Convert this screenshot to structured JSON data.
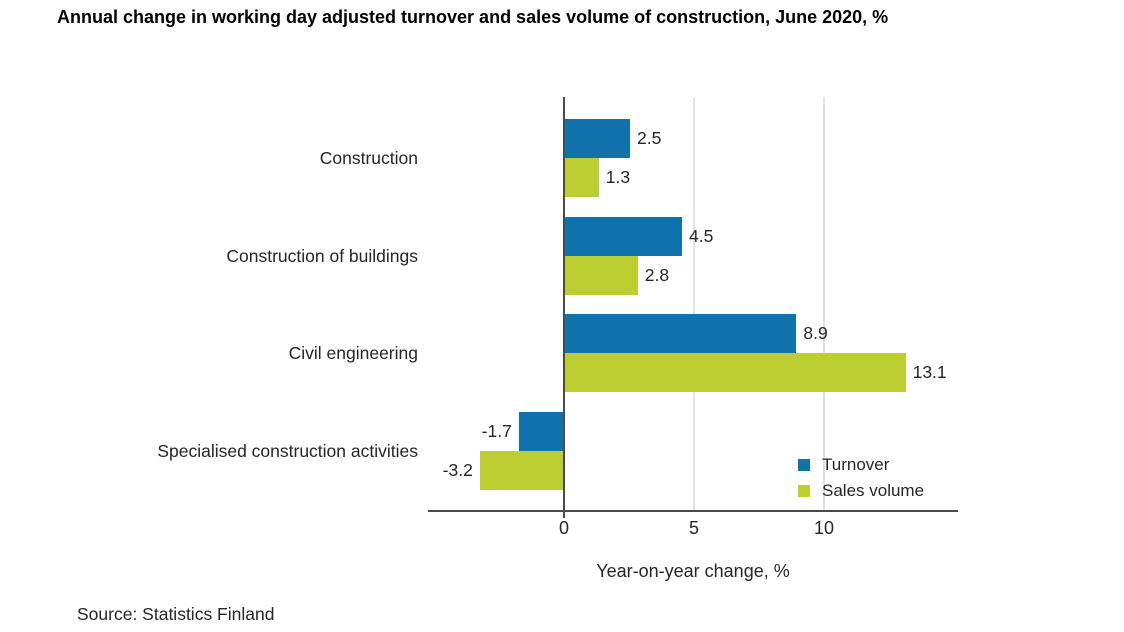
{
  "title": "Annual change in working day adjusted turnover and sales volume of construction, June 2020, %",
  "source": "Source: Statistics Finland",
  "colors": {
    "turnover_blue": "#1173ac",
    "sales_volume_green": "#bdce32",
    "axis": "#4a4a4a",
    "gridline": "#e2e2e2",
    "text": "#262626"
  },
  "chart_data": {
    "type": "bar",
    "orientation": "horizontal",
    "title": "Annual change in working day adjusted turnover and sales volume of construction, June 2020, %",
    "categories": [
      "Construction",
      "Construction of buildings",
      "Civil engineering",
      "Specialised construction activities"
    ],
    "series": [
      {
        "name": "Turnover",
        "color": "#1173ac",
        "values": [
          2.5,
          4.5,
          8.9,
          -1.7
        ]
      },
      {
        "name": "Sales volume",
        "color": "#bdce32",
        "values": [
          1.3,
          2.8,
          13.1,
          -3.2
        ]
      }
    ],
    "value_label_format": "0.0",
    "xlabel": "Year-on-year change, %",
    "ylabel": "",
    "xticks": {
      "values": [
        0,
        5,
        10
      ],
      "labels": [
        "0",
        "5",
        "10"
      ]
    },
    "xlim": [
      -5.2,
      15.2
    ],
    "grid": "vertical gridlines at 5 and 10",
    "legend_position": "inside-bottom-right"
  }
}
